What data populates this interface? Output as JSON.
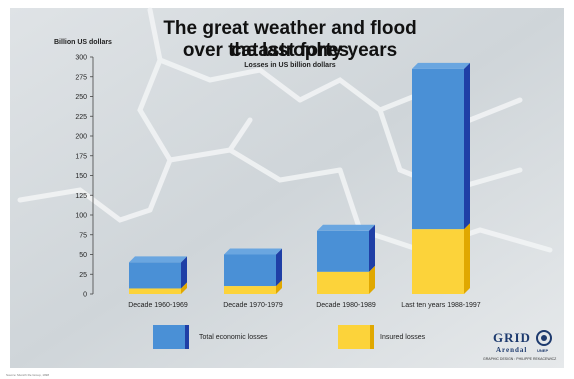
{
  "chart_data": {
    "type": "bar",
    "title": "The great weather and flood catastrophes",
    "title_line2": "over the last forty years",
    "subtitle": "Losses in US billion dollars",
    "ylabel": "Billion US dollars",
    "ylim": [
      0,
      300
    ],
    "yticks": [
      0,
      25,
      50,
      75,
      100,
      125,
      150,
      175,
      200,
      225,
      250,
      275,
      300
    ],
    "categories": [
      "Decade 1960-1969",
      "Decade 1970-1979",
      "Decade 1980-1989",
      "Last ten years 1988-1997"
    ],
    "series": [
      {
        "name": "Total economic losses",
        "values": [
          40,
          50,
          80,
          285
        ],
        "color": "#4a90d6",
        "side_color": "#1f3fa6"
      },
      {
        "name": "Insured losses",
        "values": [
          7,
          10,
          28,
          82
        ],
        "color": "#fcd33a",
        "side_color": "#e0a800"
      }
    ],
    "grid": false,
    "legend_position": "bottom"
  },
  "branding": {
    "logo_text": "GRID",
    "logo_sub": "Arendal",
    "unep": "UNEP",
    "design_credit": "GRAPHIC DESIGN : PHILIPPE REKACEWICZ",
    "source_note": "Source: Munich Re Group, 1998"
  }
}
